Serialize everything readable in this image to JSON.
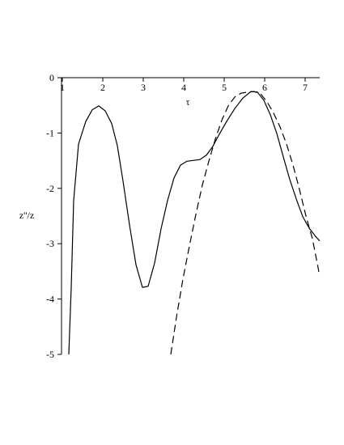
{
  "chart_data": {
    "type": "line",
    "x_label": "τ",
    "y_label": "z''/z",
    "xlim": [
      1,
      7.36
    ],
    "ylim": [
      -5,
      0
    ],
    "xticks": [
      1,
      2,
      3,
      4,
      5,
      6,
      7
    ],
    "yticks": [
      0,
      -1,
      -2,
      -3,
      -4,
      -5
    ],
    "series": [
      {
        "color": "#000000",
        "style": "solid",
        "x": [
          1.16,
          1.22,
          1.28,
          1.4,
          1.58,
          1.74,
          1.9,
          2.06,
          2.22,
          2.36,
          2.5,
          2.66,
          2.82,
          2.98,
          3.12,
          3.28,
          3.44,
          3.6,
          3.76,
          3.92,
          4.08,
          4.4,
          4.56,
          4.72,
          4.88,
          5.06,
          5.26,
          5.46,
          5.66,
          5.82,
          5.98,
          6.14,
          6.3,
          6.46,
          6.62,
          6.78,
          6.94,
          7.1,
          7.26,
          7.36
        ],
        "values": [
          -5,
          -3.79,
          -2.22,
          -1.2,
          -0.79,
          -0.58,
          -0.51,
          -0.6,
          -0.83,
          -1.23,
          -1.87,
          -2.66,
          -3.38,
          -3.79,
          -3.77,
          -3.35,
          -2.73,
          -2.22,
          -1.81,
          -1.58,
          -1.51,
          -1.48,
          -1.4,
          -1.24,
          -1.02,
          -0.79,
          -0.56,
          -0.37,
          -0.25,
          -0.26,
          -0.41,
          -0.67,
          -1.01,
          -1.43,
          -1.84,
          -2.19,
          -2.51,
          -2.72,
          -2.87,
          -2.95
        ]
      },
      {
        "color": "#000000",
        "style": "dashed",
        "x": [
          3.68,
          3.82,
          3.98,
          4.14,
          4.3,
          4.46,
          4.62,
          4.78,
          4.94,
          5.1,
          5.26,
          5.42,
          5.58,
          5.74,
          5.9,
          6.06,
          6.22,
          6.38,
          6.54,
          6.7,
          6.86,
          7.02,
          7.18,
          7.34
        ],
        "values": [
          -5,
          -4.33,
          -3.64,
          -3.04,
          -2.47,
          -1.94,
          -1.51,
          -1.11,
          -0.77,
          -0.51,
          -0.35,
          -0.28,
          -0.26,
          -0.25,
          -0.29,
          -0.44,
          -0.64,
          -0.89,
          -1.2,
          -1.58,
          -2.02,
          -2.5,
          -2.91,
          -3.51
        ]
      }
    ]
  }
}
